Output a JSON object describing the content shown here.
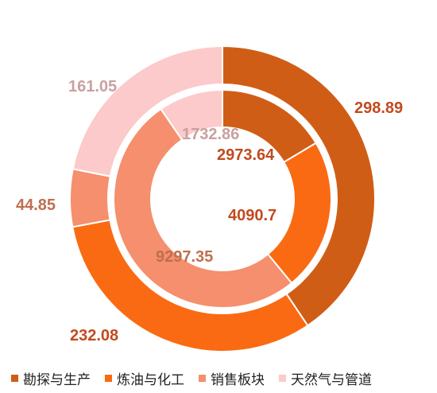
{
  "chart_data": {
    "type": "donut",
    "categories": [
      "勘探与生产",
      "炼油与化工",
      "销售板块",
      "天然气与管道"
    ],
    "colors": [
      "#d05d16",
      "#fa6a12",
      "#f58f6d",
      "#fccaca"
    ],
    "label_colors": [
      "#c24a1e",
      "#c24a1e",
      "#bf6f4e",
      "#c9a0a0"
    ],
    "series": [
      {
        "ring": "outer",
        "values": [
          298.89,
          232.08,
          44.85,
          161.05
        ],
        "labels": [
          "298.89",
          "232.08",
          "44.85",
          "161.05"
        ]
      },
      {
        "ring": "inner",
        "values": [
          2973.64,
          4090.7,
          9297.35,
          1732.86
        ],
        "labels": [
          "2973.64",
          "4090.7",
          "9297.35",
          "1732.86"
        ]
      }
    ],
    "legend_position": "bottom"
  }
}
